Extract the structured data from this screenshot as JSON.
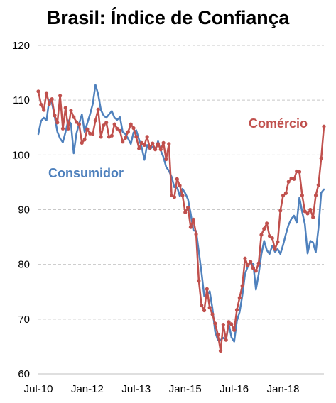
{
  "chart_data": {
    "type": "line",
    "title": "Brasil: Índice de Confiança",
    "xlabel": "",
    "ylabel": "",
    "ylim": [
      60,
      120
    ],
    "yticks": [
      60,
      70,
      80,
      90,
      100,
      110,
      120
    ],
    "x_tick_labels": [
      "Jul-10",
      "Jan-12",
      "Jul-13",
      "Jan-15",
      "Jul-16",
      "Jan-18"
    ],
    "x_start": "Jul-10",
    "x_end": "Nov-18",
    "grid": "horizontal dashed",
    "colors": {
      "consumidor": "#4f81bd",
      "comercio": "#c0504d"
    },
    "series": [
      {
        "name": "Consumidor",
        "values": [
          103.8,
          106.2,
          106.8,
          106.3,
          110.0,
          109.5,
          107.0,
          104.2,
          103.0,
          102.3,
          104.2,
          106.3,
          105.7,
          100.3,
          103.9,
          105.7,
          107.4,
          104.2,
          105.8,
          107.4,
          109.3,
          112.8,
          111.1,
          108.2,
          107.2,
          106.8,
          107.4,
          108.0,
          106.8,
          106.4,
          106.9,
          104.2,
          103.8,
          103.0,
          102.0,
          104.1,
          104.5,
          102.8,
          101.4,
          99.1,
          101.8,
          101.0,
          101.5,
          101.0,
          102.5,
          100.8,
          99.6,
          97.8,
          97.1,
          96.0,
          94.1,
          94.1,
          92.5,
          93.8,
          93.0,
          91.9,
          89.3,
          86.2,
          86.1,
          82.3,
          78.5,
          74.2,
          74.4,
          75.1,
          72.0,
          67.7,
          66.2,
          66.2,
          66.6,
          66.2,
          69.2,
          66.7,
          65.9,
          69.7,
          71.3,
          74.3,
          78.3,
          79.6,
          80.3,
          80.1,
          75.4,
          78.2,
          81.8,
          84.3,
          82.6,
          81.9,
          83.4,
          82.3,
          82.8,
          81.9,
          83.6,
          85.5,
          87.2,
          88.3,
          88.9,
          87.6,
          92.2,
          89.6,
          87.3,
          82.0,
          84.3,
          84.0,
          82.2,
          86.6,
          93.1,
          93.7
        ]
      },
      {
        "name": "Comércio",
        "values": [
          111.6,
          109.2,
          108.2,
          111.3,
          109.3,
          110.2,
          107.2,
          105.9,
          110.8,
          104.8,
          108.6,
          104.8,
          108.1,
          106.9,
          106.0,
          105.6,
          102.2,
          102.8,
          104.7,
          103.9,
          103.8,
          106.3,
          108.3,
          103.3,
          105.4,
          105.9,
          103.3,
          103.5,
          105.6,
          104.8,
          104.4,
          102.4,
          103.1,
          104.2,
          105.6,
          104.9,
          103.3,
          101.2,
          102.2,
          101.8,
          103.3,
          101.3,
          102.1,
          101.0,
          102.0,
          101.0,
          102.2,
          99.2,
          102.0,
          92.6,
          92.3,
          95.6,
          94.4,
          92.6,
          89.5,
          90.4,
          86.8,
          88.2,
          85.5,
          77.0,
          72.5,
          71.6,
          75.5,
          72.1,
          70.9,
          69.2,
          67.2,
          64.2,
          69.0,
          66.2,
          69.5,
          69.1,
          68.0,
          71.7,
          73.9,
          76.1,
          81.1,
          79.8,
          80.5,
          79.3,
          78.8,
          80.2,
          85.4,
          86.5,
          87.5,
          85.2,
          84.8,
          82.8,
          84.1,
          89.8,
          92.6,
          93.0,
          95.1,
          95.7,
          95.6,
          97.0,
          96.9,
          92.6,
          89.7,
          89.3,
          90.0,
          88.6,
          92.6,
          94.5,
          99.4,
          105.2
        ]
      }
    ]
  }
}
